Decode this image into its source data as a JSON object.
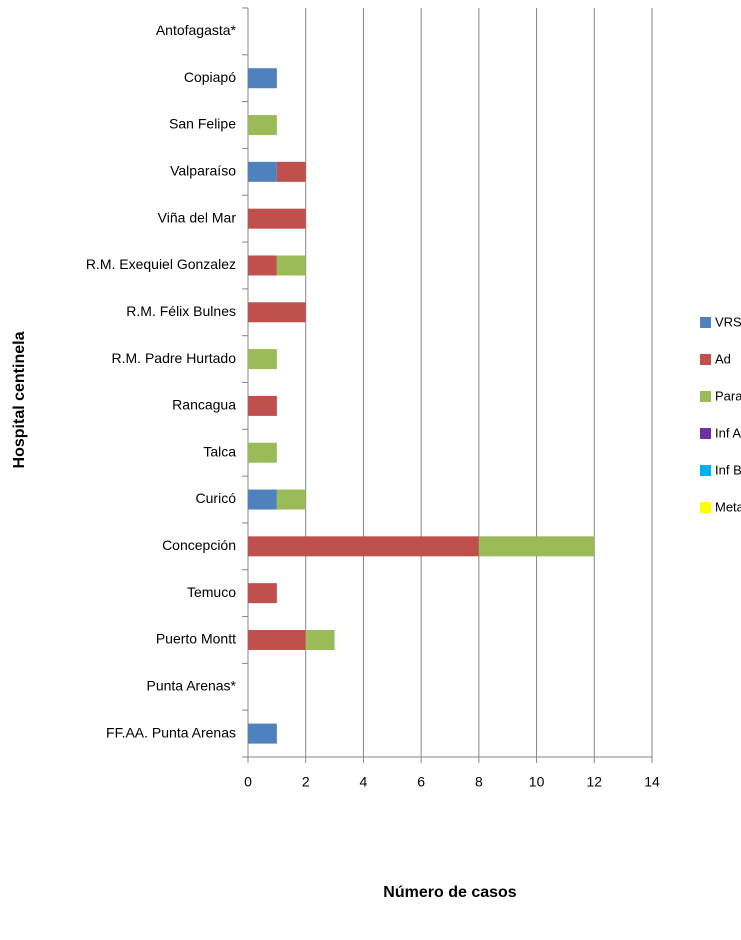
{
  "chart_data": {
    "type": "stacked-bar-horizontal",
    "x_label": "Número de casos",
    "y_label": "Hospital  centinela",
    "categories": [
      "Antofagasta*",
      "Copiapó",
      "San Felipe",
      "Valparaíso",
      "Viña del Mar",
      "R.M. Exequiel Gonzalez",
      "R.M. Félix Bulnes",
      "R.M. Padre Hurtado",
      "Rancagua",
      "Talca",
      "Curicó",
      "Concepción",
      "Temuco",
      "Puerto Montt",
      "Punta Arenas*",
      "FF.AA. Punta Arenas"
    ],
    "series": [
      {
        "name": "VRS",
        "color": "#4f81bd",
        "values": [
          0,
          1,
          0,
          1,
          0,
          0,
          0,
          0,
          0,
          0,
          1,
          0,
          0,
          0,
          0,
          1
        ]
      },
      {
        "name": "Ad",
        "color": "#c0504d",
        "values": [
          0,
          0,
          0,
          1,
          2,
          1,
          2,
          0,
          1,
          0,
          0,
          8,
          1,
          2,
          0,
          0
        ]
      },
      {
        "name": "Para",
        "color": "#9bbb59",
        "values": [
          0,
          0,
          1,
          0,
          0,
          1,
          0,
          1,
          0,
          1,
          1,
          4,
          0,
          1,
          0,
          0
        ]
      },
      {
        "name": "Inf A",
        "color": "#7030a0",
        "values": [
          0,
          0,
          0,
          0,
          0,
          0,
          0,
          0,
          0,
          0,
          0,
          0,
          0,
          0,
          0,
          0
        ]
      },
      {
        "name": "Inf B",
        "color": "#00b0f0",
        "values": [
          0,
          0,
          0,
          0,
          0,
          0,
          0,
          0,
          0,
          0,
          0,
          0,
          0,
          0,
          0,
          0
        ]
      },
      {
        "name": "Meta",
        "color": "#ffff00",
        "values": [
          0,
          0,
          0,
          0,
          0,
          0,
          0,
          0,
          0,
          0,
          0,
          0,
          0,
          0,
          0,
          0
        ]
      }
    ],
    "xlim": [
      0,
      14
    ],
    "xticks": [
      0,
      2,
      4,
      6,
      8,
      10,
      12,
      14
    ],
    "grid": true,
    "legend": "right"
  }
}
